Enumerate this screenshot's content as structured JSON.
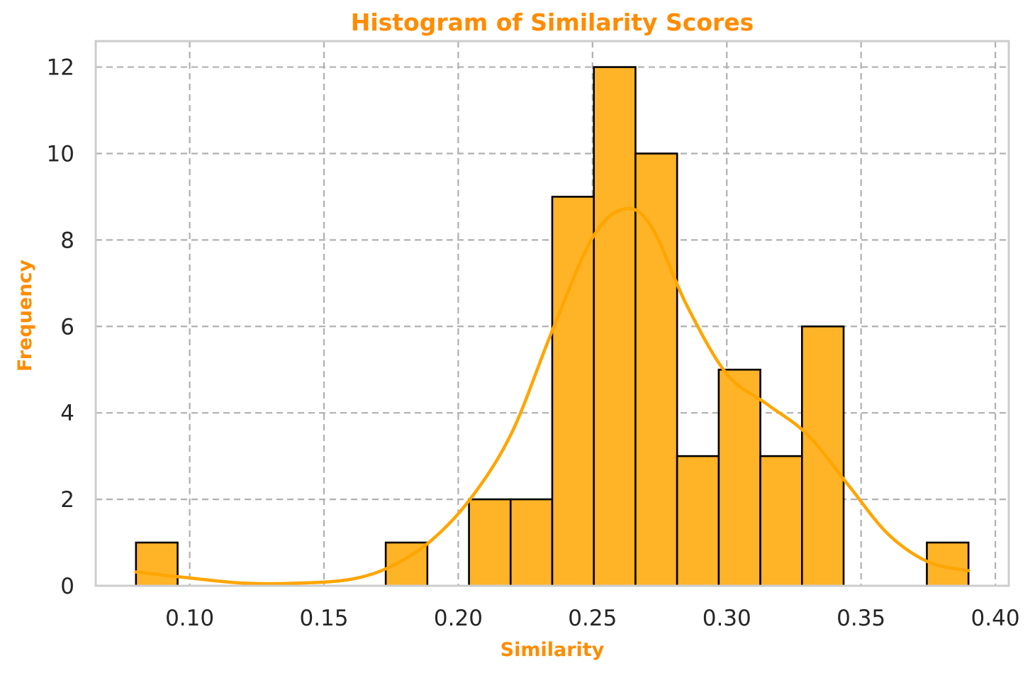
{
  "colors": {
    "accent": "#ff8c00",
    "bar_fill": "#ffb327",
    "bar_edge": "#000000",
    "kde_line": "#ffa500",
    "grid": "#b0b0b0",
    "frame": "#cccccc",
    "tick_text": "#262626"
  },
  "chart_data": {
    "type": "bar",
    "title": "Histogram of Similarity Scores",
    "xlabel": "Similarity",
    "ylabel": "Frequency",
    "xlim": [
      0.065,
      0.405
    ],
    "ylim": [
      0,
      12.6
    ],
    "grid": true,
    "grid_style": "dashed",
    "xticks": [
      0.1,
      0.15,
      0.2,
      0.25,
      0.3,
      0.35,
      0.4
    ],
    "xtick_labels": [
      "0.10",
      "0.15",
      "0.20",
      "0.25",
      "0.30",
      "0.35",
      "0.40"
    ],
    "yticks": [
      0,
      2,
      4,
      6,
      8,
      10,
      12
    ],
    "ytick_labels": [
      "0",
      "2",
      "4",
      "6",
      "8",
      "10",
      "12"
    ],
    "bin_edges": [
      0.08,
      0.0955,
      0.111,
      0.1265,
      0.142,
      0.1575,
      0.173,
      0.1885,
      0.204,
      0.2195,
      0.235,
      0.2505,
      0.266,
      0.2815,
      0.297,
      0.3125,
      0.328,
      0.3435,
      0.359,
      0.3745,
      0.39
    ],
    "counts": [
      1,
      0,
      0,
      0,
      0,
      0,
      1,
      0,
      2,
      2,
      9,
      12,
      10,
      3,
      5,
      3,
      6,
      0,
      0,
      1
    ],
    "kde": {
      "x": [
        0.08,
        0.1,
        0.12,
        0.14,
        0.16,
        0.175,
        0.19,
        0.205,
        0.22,
        0.235,
        0.25,
        0.262,
        0.272,
        0.285,
        0.3,
        0.315,
        0.33,
        0.345,
        0.36,
        0.375,
        0.39
      ],
      "y": [
        0.32,
        0.18,
        0.06,
        0.06,
        0.15,
        0.45,
        1.05,
        2.05,
        3.55,
        5.9,
        8.05,
        8.72,
        8.3,
        6.5,
        4.9,
        4.2,
        3.5,
        2.35,
        1.2,
        0.55,
        0.35
      ]
    }
  }
}
